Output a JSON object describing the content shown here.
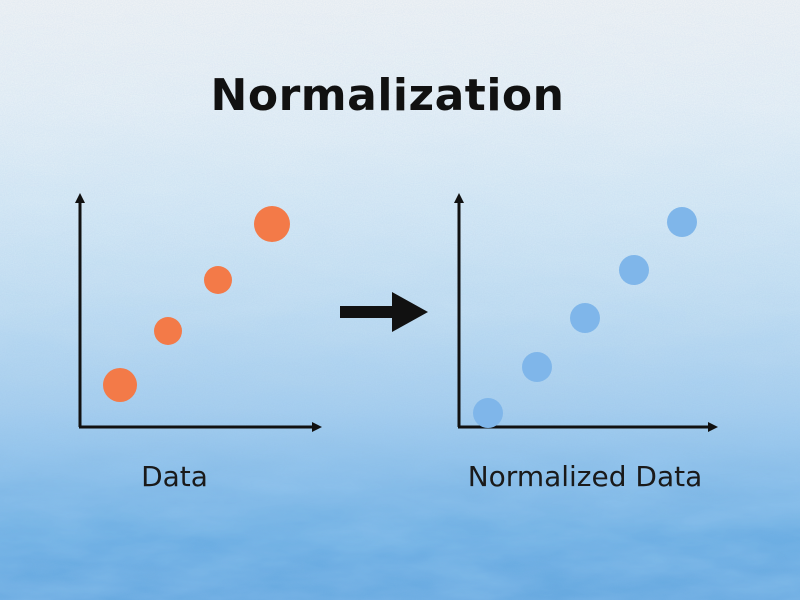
{
  "title": "Normalization",
  "left_caption": "Data",
  "right_caption": "Normalized Data",
  "colors": {
    "raw_point": "#f37a48",
    "normalized_point": "#7fb6ea",
    "axis": "#111111",
    "arrow": "#111111"
  },
  "icons": [
    "right-arrow-icon"
  ]
}
